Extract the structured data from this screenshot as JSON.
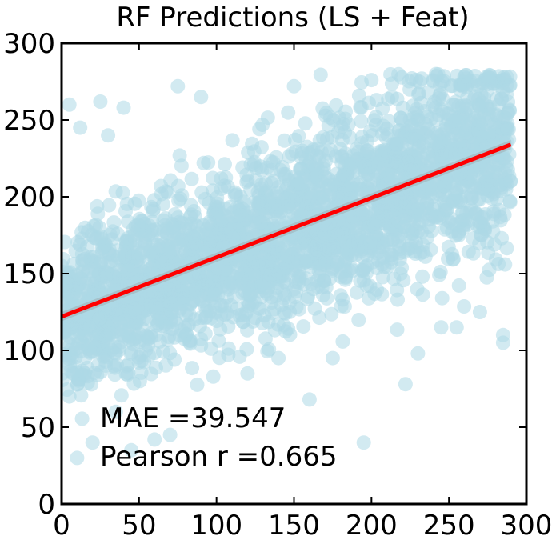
{
  "chart_data": {
    "type": "scatter",
    "title": "RF Predictions (LS + Feat)",
    "xlabel": "",
    "ylabel": "",
    "xlim": [
      0,
      300
    ],
    "ylim": [
      0,
      300
    ],
    "xticks": [
      0,
      50,
      100,
      150,
      200,
      250,
      300
    ],
    "yticks": [
      0,
      50,
      100,
      150,
      200,
      250,
      300
    ],
    "grid": false,
    "point_color": "#add8e6",
    "regression_color": "#ff0000",
    "regression_line": {
      "x": [
        0,
        290
      ],
      "y": [
        122,
        234
      ]
    },
    "annotations": {
      "mae": "MAE =39.547",
      "pearson": "Pearson r =0.665"
    },
    "points_description": "dense cloud of predictions vs. targets; ~3000 points, x in [0,290], y in [25,280]",
    "sample_points": [
      [
        5,
        260
      ],
      [
        12,
        245
      ],
      [
        25,
        262
      ],
      [
        30,
        240
      ],
      [
        40,
        258
      ],
      [
        75,
        272
      ],
      [
        90,
        265
      ],
      [
        150,
        272
      ],
      [
        200,
        276
      ],
      [
        260,
        278
      ],
      [
        285,
        276
      ],
      [
        10,
        30
      ],
      [
        20,
        40
      ],
      [
        45,
        35
      ],
      [
        60,
        42
      ],
      [
        70,
        45
      ],
      [
        5,
        70
      ],
      [
        15,
        85
      ],
      [
        35,
        60
      ],
      [
        120,
        85
      ],
      [
        160,
        68
      ],
      [
        195,
        40
      ],
      [
        230,
        98
      ],
      [
        245,
        115
      ],
      [
        255,
        115
      ],
      [
        270,
        125
      ],
      [
        285,
        105
      ],
      [
        285,
        110
      ],
      [
        222,
        78
      ],
      [
        175,
        95
      ],
      [
        140,
        95
      ]
    ]
  }
}
